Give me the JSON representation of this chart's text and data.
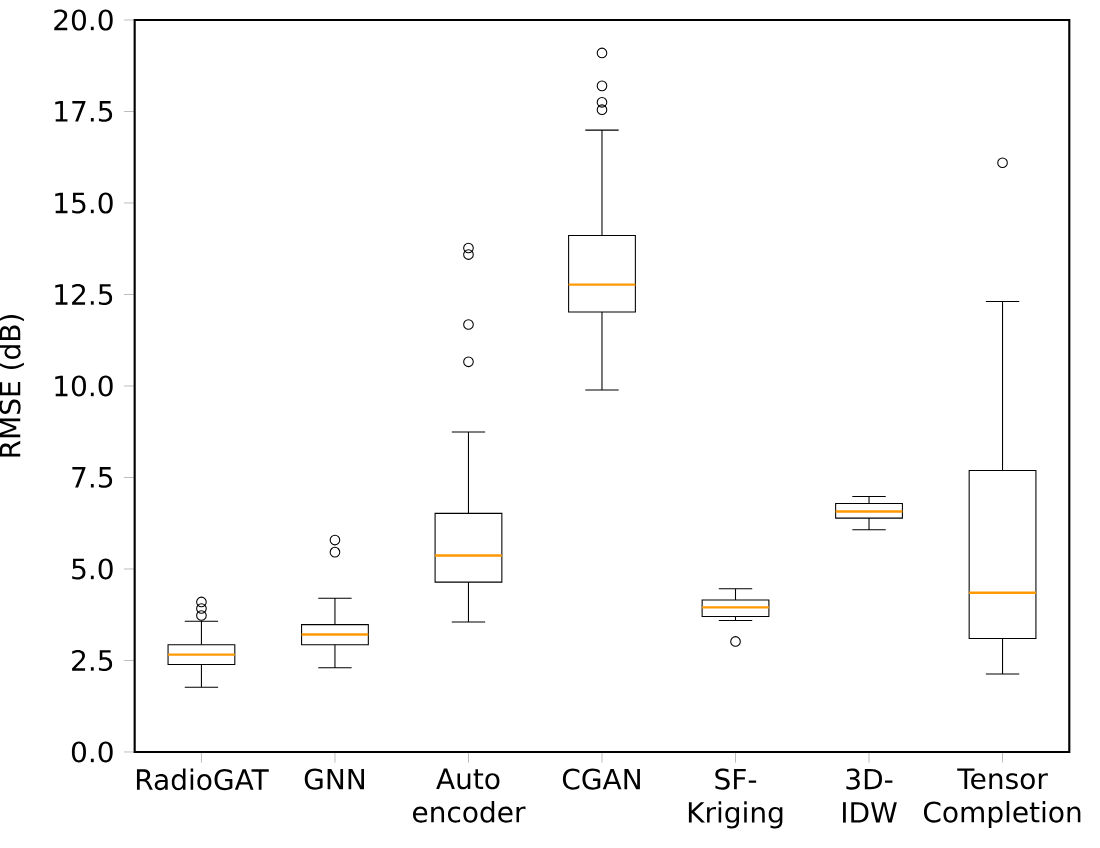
{
  "chart_data": {
    "type": "box",
    "ylabel": "RMSE (dB)",
    "categories": [
      "RadioGAT",
      "GNN",
      "Auto encoder",
      "CGAN",
      "SF-Kriging",
      "3D-IDW",
      "Tensor Completion"
    ],
    "boxes": [
      {
        "low": 1.77,
        "q1": 2.39,
        "median": 2.66,
        "q3": 2.93,
        "high": 3.57,
        "outliers": [
          3.73,
          3.92,
          4.1
        ]
      },
      {
        "low": 2.3,
        "q1": 2.93,
        "median": 3.21,
        "q3": 3.48,
        "high": 4.2,
        "outliers": [
          5.46,
          5.79
        ]
      },
      {
        "low": 3.55,
        "q1": 4.64,
        "median": 5.37,
        "q3": 6.52,
        "high": 8.74,
        "outliers": [
          10.66,
          11.68,
          13.59,
          13.77
        ]
      },
      {
        "low": 9.89,
        "q1": 12.02,
        "median": 12.77,
        "q3": 14.11,
        "high": 16.99,
        "outliers": [
          17.55,
          17.75,
          18.2,
          19.1
        ]
      },
      {
        "low": 3.59,
        "q1": 3.7,
        "median": 3.95,
        "q3": 4.15,
        "high": 4.46,
        "outliers": [
          3.02
        ]
      },
      {
        "low": 6.07,
        "q1": 6.39,
        "median": 6.57,
        "q3": 6.79,
        "high": 6.98
      },
      {
        "low": 2.13,
        "q1": 3.1,
        "median": 4.35,
        "q3": 7.69,
        "high": 12.31,
        "outliers": [
          16.1
        ]
      }
    ],
    "ylim": [
      0,
      20
    ],
    "yticks": [
      {
        "value": 0,
        "label": "0.0"
      },
      {
        "value": 2.5,
        "label": "2.5"
      },
      {
        "value": 5,
        "label": "5.0"
      },
      {
        "value": 7.5,
        "label": "7.5"
      },
      {
        "value": 10,
        "label": "10.0"
      },
      {
        "value": 12.5,
        "label": "12.5"
      },
      {
        "value": 15,
        "label": "15.0"
      },
      {
        "value": 17.5,
        "label": "17.5"
      },
      {
        "value": 20,
        "label": "20.0"
      }
    ]
  }
}
